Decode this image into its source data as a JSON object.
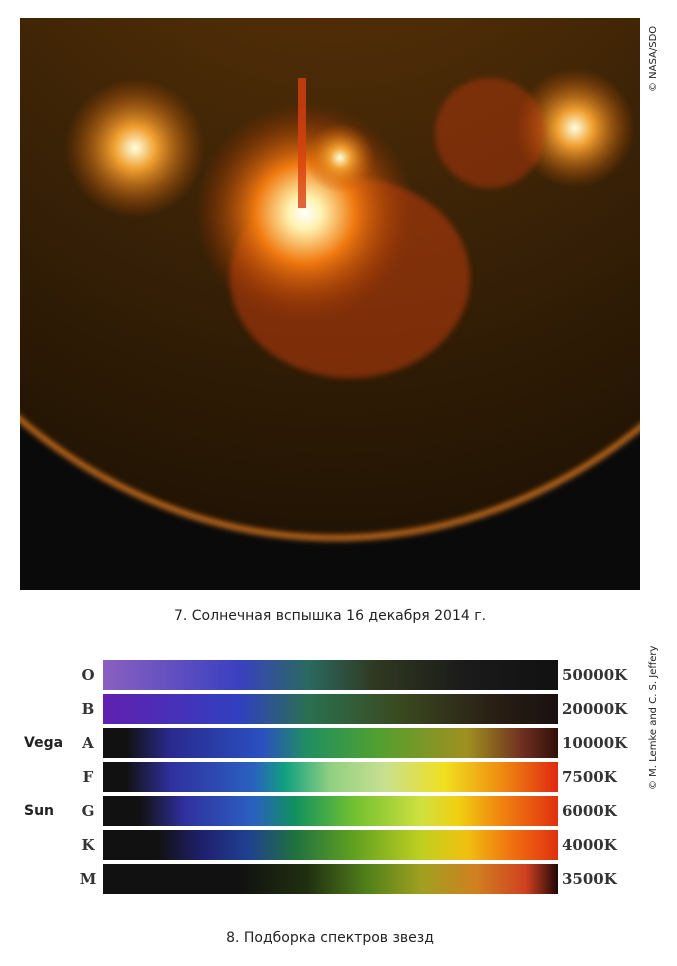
{
  "figures": [
    {
      "credit": "© NASA/SDO",
      "caption": "7. Солнечная вспышка 16 декабря 2014 г."
    },
    {
      "credit": "© M. Lemke and C. S. Jeffery",
      "caption": "8. Подборка спектров звезд",
      "rows": [
        {
          "class": "O",
          "temperature": "50000K"
        },
        {
          "class": "B",
          "temperature": "20000K"
        },
        {
          "class": "A",
          "temperature": "10000K",
          "star": "Vega"
        },
        {
          "class": "F",
          "temperature": "7500K"
        },
        {
          "class": "G",
          "temperature": "6000K",
          "star": "Sun"
        },
        {
          "class": "K",
          "temperature": "4000K"
        },
        {
          "class": "M",
          "temperature": "3500K"
        }
      ]
    }
  ]
}
